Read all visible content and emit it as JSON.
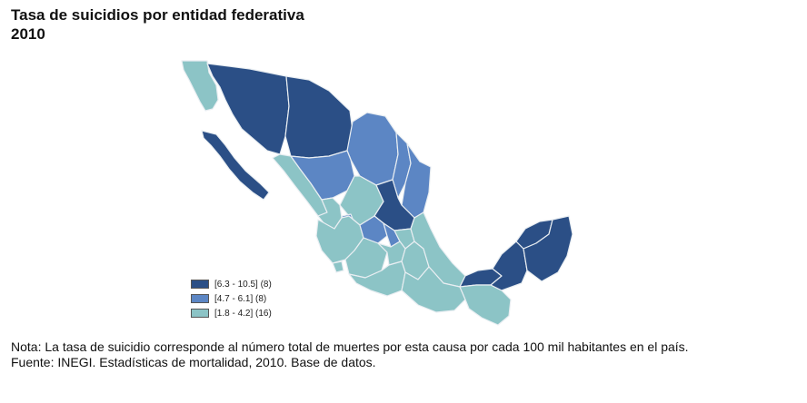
{
  "header": {
    "title_line1": "Tasa de suicidios por entidad federativa",
    "title_line2": "2010"
  },
  "legend": {
    "items": [
      {
        "label": "[6.3 - 10.5] (8)",
        "color": "#2b4f86"
      },
      {
        "label": "[4.7 - 6.1] (8)",
        "color": "#5c86c4"
      },
      {
        "label": "[1.8 - 4.2] (16)",
        "color": "#8cc4c6"
      }
    ]
  },
  "colors": {
    "high": "#2b4f86",
    "medium": "#5c86c4",
    "low": "#8cc4c6",
    "border": "#e9eef2"
  },
  "footer": {
    "note": "Nota: La tasa de suicidio corresponde al número total de muertes por esta causa por cada 100 mil habitantes en el país.",
    "source": "Fuente: INEGI. Estadísticas de mortalidad, 2010. Base de datos."
  }
}
